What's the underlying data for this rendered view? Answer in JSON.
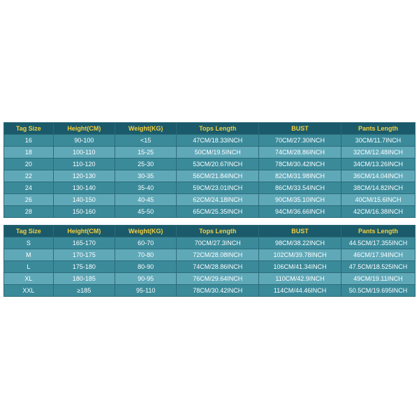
{
  "tables": [
    {
      "header_bg": "#1a5a6a",
      "header_color": "#f5d040",
      "row_colors": [
        "#3a8a9a",
        "#5fa8b8"
      ],
      "text_color": "#ffffff",
      "border_color": "#2c6b78",
      "columns": [
        "Tag Size",
        "Height(CM)",
        "Weight(KG)",
        "Tops Length",
        "BUST",
        "Pants Length"
      ],
      "rows": [
        [
          "16",
          "90-100",
          "<15",
          "47CM/18.33INCH",
          "70CM/27.30INCH",
          "30CM/11.7INCH"
        ],
        [
          "18",
          "100-110",
          "15-25",
          "50CM/19.5INCH",
          "74CM/28.86INCH",
          "32CM/12.48INCH"
        ],
        [
          "20",
          "110-120",
          "25-30",
          "53CM/20.67INCH",
          "78CM/30.42INCH",
          "34CM/13.26INCH"
        ],
        [
          "22",
          "120-130",
          "30-35",
          "56CM/21.84INCH",
          "82CM/31.98INCH",
          "36CM/14.04INCH"
        ],
        [
          "24",
          "130-140",
          "35-40",
          "59CM/23.01INCH",
          "86CM/33.54INCH",
          "38CM/14.82INCH"
        ],
        [
          "26",
          "140-150",
          "40-45",
          "62CM/24.18INCH",
          "90CM/35.10INCH",
          "40CM/15.6INCH"
        ],
        [
          "28",
          "150-160",
          "45-50",
          "65CM/25.35INCH",
          "94CM/36.66INCH",
          "42CM/16.38INCH"
        ]
      ]
    },
    {
      "header_bg": "#1a5a6a",
      "header_color": "#f5d040",
      "row_colors": [
        "#3a8a9a",
        "#5fa8b8"
      ],
      "text_color": "#ffffff",
      "border_color": "#2c6b78",
      "columns": [
        "Tag Size",
        "Height(CM)",
        "Weight(KG)",
        "Tops Length",
        "BUST",
        "Pants Length"
      ],
      "rows": [
        [
          "S",
          "165-170",
          "60-70",
          "70CM/27.3INCH",
          "98CM/38.22INCH",
          "44.5CM/17.355INCH"
        ],
        [
          "M",
          "170-175",
          "70-80",
          "72CM/28.08INCH",
          "102CM/39.78INCH",
          "46CM/17.94INCH"
        ],
        [
          "L",
          "175-180",
          "80-90",
          "74CM/28.86INCH",
          "106CM/41.34INCH",
          "47.5CM/18.525INCH"
        ],
        [
          "XL",
          "180-185",
          "90-95",
          "76CM/29.64INCH",
          "110CM/42.9INCH",
          "49CM/19.11INCH"
        ],
        [
          "XXL",
          "≥185",
          "95-110",
          "78CM/30.42INCH",
          "114CM/44.46INCH",
          "50.5CM/19.695INCH"
        ]
      ]
    }
  ]
}
